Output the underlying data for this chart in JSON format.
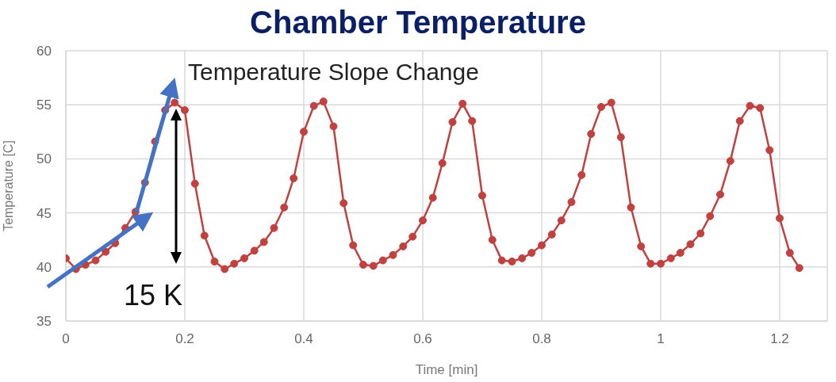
{
  "chart_data": {
    "type": "line",
    "title": "Chamber Temperature",
    "xlabel": "Time [min]",
    "ylabel": "Temperature [C]",
    "annotations": [
      "Temperature Slope Change",
      "15 K"
    ],
    "x": [
      0,
      0.017,
      0.033,
      0.05,
      0.067,
      0.083,
      0.1,
      0.117,
      0.133,
      0.15,
      0.167,
      0.183,
      0.2,
      0.217,
      0.233,
      0.25,
      0.267,
      0.283,
      0.3,
      0.317,
      0.333,
      0.35,
      0.367,
      0.383,
      0.4,
      0.417,
      0.433,
      0.45,
      0.467,
      0.483,
      0.5,
      0.517,
      0.533,
      0.55,
      0.567,
      0.583,
      0.6,
      0.617,
      0.633,
      0.65,
      0.667,
      0.683,
      0.7,
      0.717,
      0.733,
      0.75,
      0.767,
      0.783,
      0.8,
      0.817,
      0.833,
      0.85,
      0.867,
      0.883,
      0.9,
      0.917,
      0.933,
      0.95,
      0.967,
      0.983,
      1.0,
      1.017,
      1.033,
      1.05,
      1.067,
      1.083,
      1.1,
      1.117,
      1.133,
      1.15,
      1.167,
      1.183,
      1.2,
      1.217,
      1.233
    ],
    "series": [
      {
        "color": "#c0413f",
        "values": [
          40.8,
          39.8,
          40.2,
          40.6,
          41.4,
          42.2,
          43.6,
          45.1,
          47.8,
          51.6,
          54.5,
          55.2,
          54.5,
          47.7,
          42.9,
          40.5,
          39.8,
          40.3,
          40.8,
          41.5,
          42.3,
          43.6,
          45.5,
          48.2,
          52.5,
          54.9,
          55.3,
          53.0,
          45.9,
          42.0,
          40.2,
          40.1,
          40.6,
          41.1,
          41.9,
          42.8,
          44.3,
          46.4,
          49.6,
          53.4,
          55.1,
          53.5,
          46.6,
          42.5,
          40.6,
          40.5,
          40.8,
          41.3,
          42.0,
          43.0,
          44.3,
          46.0,
          48.5,
          52.3,
          54.8,
          55.2,
          52.0,
          45.5,
          41.9,
          40.3,
          40.3,
          40.8,
          41.3,
          42.1,
          43.1,
          44.7,
          46.7,
          49.8,
          53.5,
          54.9,
          54.7,
          50.8,
          44.5,
          41.3,
          39.9
        ]
      }
    ],
    "xlim": [
      0,
      1.28
    ],
    "xticks": [
      0,
      0.2,
      0.4,
      0.6,
      0.8,
      1,
      1.2
    ],
    "ylim": [
      35,
      60
    ],
    "yticks": [
      35,
      40,
      45,
      50,
      55,
      60
    ],
    "grid": true,
    "marker": "circle",
    "line_style": "solid"
  }
}
